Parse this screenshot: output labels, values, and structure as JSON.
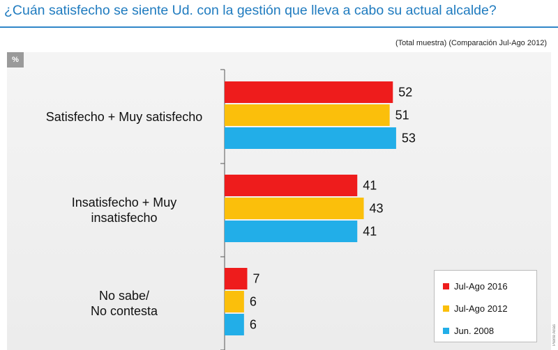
{
  "header": {
    "title": "¿Cuán satisfecho se siente Ud. con la gestión que lleva a cabo su actual alcalde?",
    "subtitle": "(Total muestra) (Comparación Jul-Ago 2012)",
    "unit_badge": "%",
    "credit": "Pierre Arias"
  },
  "colors": {
    "Jul-Ago 2016": "#ee1c1c",
    "Jul-Ago 2012": "#fbbf0b",
    "Jun. 2008": "#22aee8"
  },
  "chart_data": {
    "type": "bar",
    "orientation": "horizontal",
    "categories": [
      [
        "Satisfecho + Muy satisfecho"
      ],
      [
        "Insatisfecho + Muy",
        "insatisfecho"
      ],
      [
        "No sabe/",
        "No contesta"
      ]
    ],
    "series": [
      {
        "name": "Jul-Ago 2016",
        "values": [
          52,
          41,
          7
        ]
      },
      {
        "name": "Jul-Ago 2012",
        "values": [
          51,
          43,
          6
        ]
      },
      {
        "name": "Jun. 2008",
        "values": [
          53,
          41,
          6
        ]
      }
    ],
    "xlim": [
      0,
      100
    ],
    "grid": false,
    "legend": "bottom-right"
  }
}
